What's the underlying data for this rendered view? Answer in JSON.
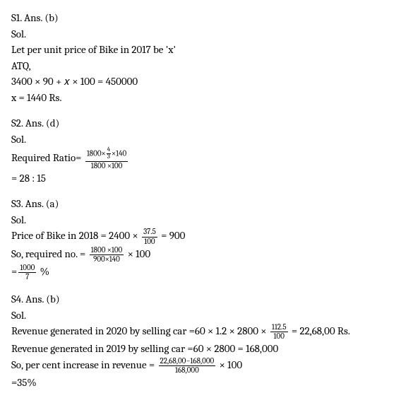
{
  "solutions": [
    {
      "header": "S1. Ans. (b)",
      "sol": "Sol.",
      "lines": {
        "l1": "Let per unit price of Bike in 2017 be 'x'",
        "l2": "ATQ,",
        "l3": "3400 × 90 + 𝑥 × 100 = 450000",
        "l4": "x = 1440 Rs."
      }
    },
    {
      "header": "S2. Ans. (d)",
      "sol": "Sol.",
      "ratio_label": "Required Ratio=",
      "frac": {
        "num_left": "1800×",
        "inner_num": "4",
        "inner_den": "3",
        "num_right": "×140",
        "den": "1800 ×100"
      },
      "result": "= 28 : 15"
    },
    {
      "header": "S3. Ans. (a)",
      "sol": "Sol.",
      "price_label": "Price of Bike in 2018 = 2400 ×",
      "price_frac": {
        "num": "37.5",
        "den": "100"
      },
      "price_eq": "= 900",
      "req_label": "So, required no. =",
      "req_frac": {
        "num": "1800 ×100",
        "den": "900×140"
      },
      "req_tail": "× 100",
      "final_eq": "=",
      "final_frac": {
        "num": "1000",
        "den": "7"
      },
      "final_pct": "%"
    },
    {
      "header": "S4. Ans. (b)",
      "sol": "Sol.",
      "rev2020_label": "Revenue generated in 2020 by selling car =60 × 1.2 × 2800 ×",
      "rev2020_frac": {
        "num": "112.5",
        "den": "100"
      },
      "rev2020_eq": "= 22,68,00 Rs.",
      "rev2019": "Revenue generated in 2019 by selling car =60 × 2800 = 168,000",
      "pct_label": "So,  per cent increase in revenue =",
      "pct_frac": {
        "num": "22,68,00−168,000",
        "den": "168,000"
      },
      "pct_tail": "× 100",
      "pct_result": "=35%"
    }
  ]
}
